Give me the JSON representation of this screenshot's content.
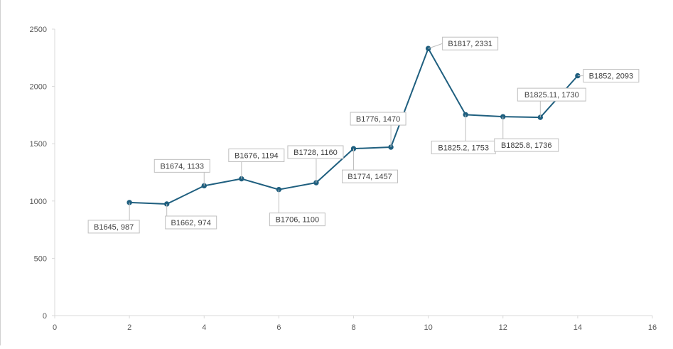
{
  "chart_data": {
    "type": "scatter",
    "title": "",
    "xlabel": "",
    "ylabel": "",
    "xlim": [
      0,
      16
    ],
    "ylim": [
      0,
      2500
    ],
    "x_ticks": [
      "0",
      "2",
      "4",
      "6",
      "8",
      "10",
      "12",
      "14",
      "16"
    ],
    "y_ticks": [
      "0",
      "500",
      "1000",
      "1500",
      "2000",
      "2500"
    ],
    "grid": false,
    "legend": "none",
    "line_color": "#1f5f7f",
    "points": [
      {
        "x": 2,
        "y": 987,
        "label": "B1645, 987"
      },
      {
        "x": 3,
        "y": 974,
        "label": "B1662, 974"
      },
      {
        "x": 4,
        "y": 1133,
        "label": "B1674, 1133"
      },
      {
        "x": 5,
        "y": 1194,
        "label": "B1676, 1194"
      },
      {
        "x": 6,
        "y": 1100,
        "label": "B1706, 1100"
      },
      {
        "x": 7,
        "y": 1160,
        "label": "B1728, 1160"
      },
      {
        "x": 8,
        "y": 1457,
        "label": "B1774, 1457"
      },
      {
        "x": 9,
        "y": 1470,
        "label": "B1776, 1470"
      },
      {
        "x": 10,
        "y": 2331,
        "label": "B1817, 2331"
      },
      {
        "x": 11,
        "y": 1753,
        "label": "B1825.2, 1753"
      },
      {
        "x": 12,
        "y": 1736,
        "label": "B1825.8, 1736"
      },
      {
        "x": 13,
        "y": 1730,
        "label": "B1825.11, 1730"
      },
      {
        "x": 14,
        "y": 2093,
        "label": "B1852, 2093"
      }
    ]
  }
}
